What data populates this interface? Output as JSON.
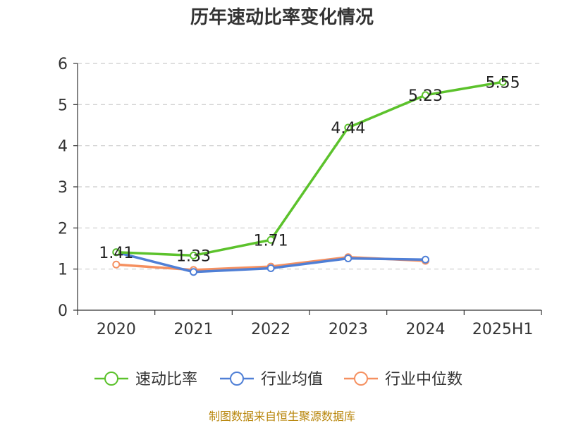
{
  "chart_data": {
    "type": "line",
    "title": "历年速动比率变化情况",
    "categories": [
      "2020",
      "2021",
      "2022",
      "2023",
      "2024",
      "2025H1"
    ],
    "ylim": [
      0,
      6
    ],
    "yticks": [
      0,
      1,
      2,
      3,
      4,
      5,
      6
    ],
    "grid": true,
    "legend_position": "bottom",
    "series": [
      {
        "name": "速动比率",
        "color": "#5cc22c",
        "values": [
          1.41,
          1.33,
          1.71,
          4.44,
          5.23,
          5.55
        ],
        "labels": [
          "1.41",
          "1.33",
          "1.71",
          "4.44",
          "5.23",
          "5.55"
        ]
      },
      {
        "name": "行业均值",
        "color": "#4f7fd6",
        "values": [
          1.41,
          0.93,
          1.02,
          1.26,
          1.23,
          null
        ]
      },
      {
        "name": "行业中位数",
        "color": "#f59060",
        "values": [
          1.11,
          0.98,
          1.06,
          1.29,
          1.2,
          null
        ]
      }
    ]
  },
  "source": "制图数据来自恒生聚源数据库"
}
